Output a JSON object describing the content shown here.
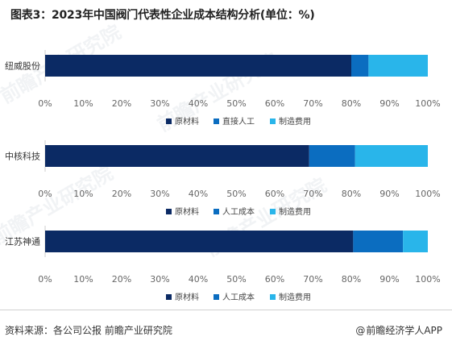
{
  "title": "图表3：2023年中国阀门代表性企业成本结构分析(单位：%)",
  "footer": {
    "source": "资料来源：各公司公报 前瞻产业研究院",
    "brand": "前瞻经济学人APP",
    "brand_symbol": "@"
  },
  "watermarks": [
    "前瞻产业研究院",
    "前瞻产业研究院",
    "前瞻产业研究院",
    "前瞻产业研究院"
  ],
  "colors": {
    "dark": "#0b2a64",
    "mid": "#0b6dc0",
    "light": "#29b5ea",
    "axis": "#cccccc",
    "tick": "#666666"
  },
  "chart_data": [
    {
      "type": "bar",
      "orientation": "horizontal",
      "stacked": true,
      "categories": [
        "纽威股份"
      ],
      "series": [
        {
          "name": "原材料",
          "values": [
            80
          ]
        },
        {
          "name": "直接人工",
          "values": [
            4.5
          ]
        },
        {
          "name": "制造费用",
          "values": [
            15.5
          ]
        }
      ],
      "xlim": [
        0,
        100
      ],
      "xticks": [
        "0%",
        "10%",
        "20%",
        "30%",
        "40%",
        "50%",
        "60%",
        "70%",
        "80%",
        "90%",
        "100%"
      ],
      "legend": "bottom"
    },
    {
      "type": "bar",
      "orientation": "horizontal",
      "stacked": true,
      "categories": [
        "中核科技"
      ],
      "series": [
        {
          "name": "原材料",
          "values": [
            69
          ]
        },
        {
          "name": "人工成本",
          "values": [
            12
          ]
        },
        {
          "name": "制造费用",
          "values": [
            19
          ]
        }
      ],
      "xlim": [
        0,
        100
      ],
      "xticks": [
        "0%",
        "10%",
        "20%",
        "30%",
        "40%",
        "50%",
        "60%",
        "70%",
        "80%",
        "90%",
        "100%"
      ],
      "legend": "bottom"
    },
    {
      "type": "bar",
      "orientation": "horizontal",
      "stacked": true,
      "categories": [
        "江苏神通"
      ],
      "series": [
        {
          "name": "原材料",
          "values": [
            80.5
          ]
        },
        {
          "name": "人工成本",
          "values": [
            13
          ]
        },
        {
          "name": "制造费用",
          "values": [
            6.5
          ]
        }
      ],
      "xlim": [
        0,
        100
      ],
      "xticks": [
        "0%",
        "10%",
        "20%",
        "30%",
        "40%",
        "50%",
        "60%",
        "70%",
        "80%",
        "90%",
        "100%"
      ],
      "legend": "bottom"
    }
  ]
}
